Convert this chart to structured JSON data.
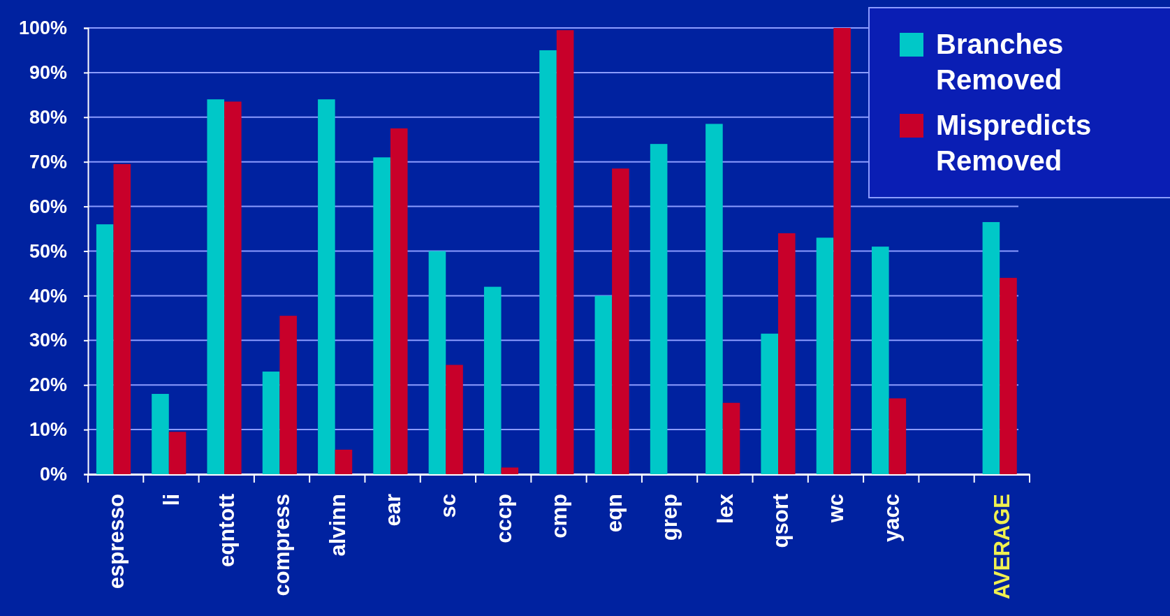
{
  "chart_data": {
    "type": "bar",
    "categories": [
      "espresso",
      "li",
      "eqntott",
      "compress",
      "alvinn",
      "ear",
      "sc",
      "cccp",
      "cmp",
      "eqn",
      "grep",
      "lex",
      "qsort",
      "wc",
      "yacc",
      null,
      "AVERAGE"
    ],
    "series": [
      {
        "name": "Branches Removed",
        "color": "#00c8c8",
        "values": [
          56,
          18,
          84,
          23,
          84,
          71,
          50,
          42,
          95,
          40,
          74,
          78.5,
          31.5,
          53,
          51,
          null,
          56.5
        ]
      },
      {
        "name": "Mispredicts Removed",
        "color": "#c8002a",
        "values": [
          69.5,
          9.5,
          83.5,
          35.5,
          5.5,
          77.5,
          24.5,
          1.5,
          99.5,
          68.5,
          null,
          16,
          54,
          100,
          17,
          null,
          44
        ]
      }
    ],
    "ylim": [
      0,
      100
    ],
    "yticks": [
      {
        "value": 0,
        "label": "0%"
      },
      {
        "value": 10,
        "label": "10%"
      },
      {
        "value": 20,
        "label": "20%"
      },
      {
        "value": 30,
        "label": "30%"
      },
      {
        "value": 40,
        "label": "40%"
      },
      {
        "value": 50,
        "label": "50%"
      },
      {
        "value": 60,
        "label": "60%"
      },
      {
        "value": 70,
        "label": "70%"
      },
      {
        "value": 80,
        "label": "80%"
      },
      {
        "value": 90,
        "label": "90%"
      },
      {
        "value": 100,
        "label": "100%"
      }
    ],
    "grid": "y",
    "legend": "top right"
  }
}
